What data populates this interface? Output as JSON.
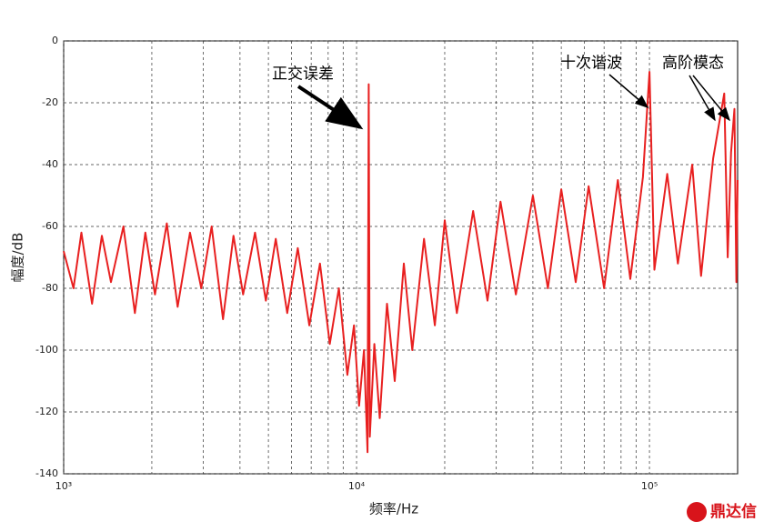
{
  "chart_data": {
    "type": "line",
    "x_label": "频率/Hz",
    "y_label": "幅度/dB",
    "xscale": "log",
    "grid": true,
    "color": "#e82020",
    "xlim": [
      1000,
      200000
    ],
    "ylim": [
      -140,
      0
    ],
    "xticks": [
      {
        "value": 1000,
        "label": "10³"
      },
      {
        "value": 10000,
        "label": "10⁴"
      },
      {
        "value": 100000,
        "label": "10⁵"
      }
    ],
    "yticks": [
      -140,
      -120,
      -100,
      -80,
      -60,
      -40,
      -20,
      0
    ],
    "annotations": [
      "正交误差",
      "十次谐波",
      "高阶模态"
    ],
    "watermark": "鼎达信",
    "x": [
      1000,
      1080,
      1150,
      1250,
      1350,
      1450,
      1600,
      1750,
      1900,
      2050,
      2250,
      2450,
      2700,
      2950,
      3200,
      3500,
      3800,
      4100,
      4500,
      4900,
      5300,
      5800,
      6300,
      6900,
      7500,
      8100,
      8700,
      9300,
      9800,
      10200,
      10600,
      10900,
      11000,
      11100,
      11500,
      12000,
      12700,
      13500,
      14500,
      15500,
      17000,
      18500,
      20000,
      22000,
      25000,
      28000,
      31000,
      35000,
      40000,
      45000,
      50000,
      56000,
      62000,
      70000,
      78000,
      86000,
      95000,
      100000,
      104000,
      115000,
      125000,
      140000,
      150000,
      165000,
      180000,
      185000,
      190000,
      195000,
      198000,
      200000
    ],
    "values": [
      -68,
      -80,
      -62,
      -85,
      -63,
      -78,
      -60,
      -88,
      -62,
      -82,
      -59,
      -86,
      -62,
      -80,
      -60,
      -90,
      -63,
      -82,
      -62,
      -84,
      -64,
      -88,
      -67,
      -92,
      -72,
      -98,
      -80,
      -108,
      -92,
      -118,
      -100,
      -133,
      -14,
      -128,
      -98,
      -122,
      -85,
      -110,
      -72,
      -100,
      -64,
      -92,
      -58,
      -88,
      -55,
      -84,
      -52,
      -82,
      -50,
      -80,
      -48,
      -78,
      -47,
      -80,
      -45,
      -77,
      -44,
      -10,
      -74,
      -43,
      -72,
      -40,
      -76,
      -38,
      -17,
      -70,
      -36,
      -22,
      -78,
      -45
    ]
  }
}
